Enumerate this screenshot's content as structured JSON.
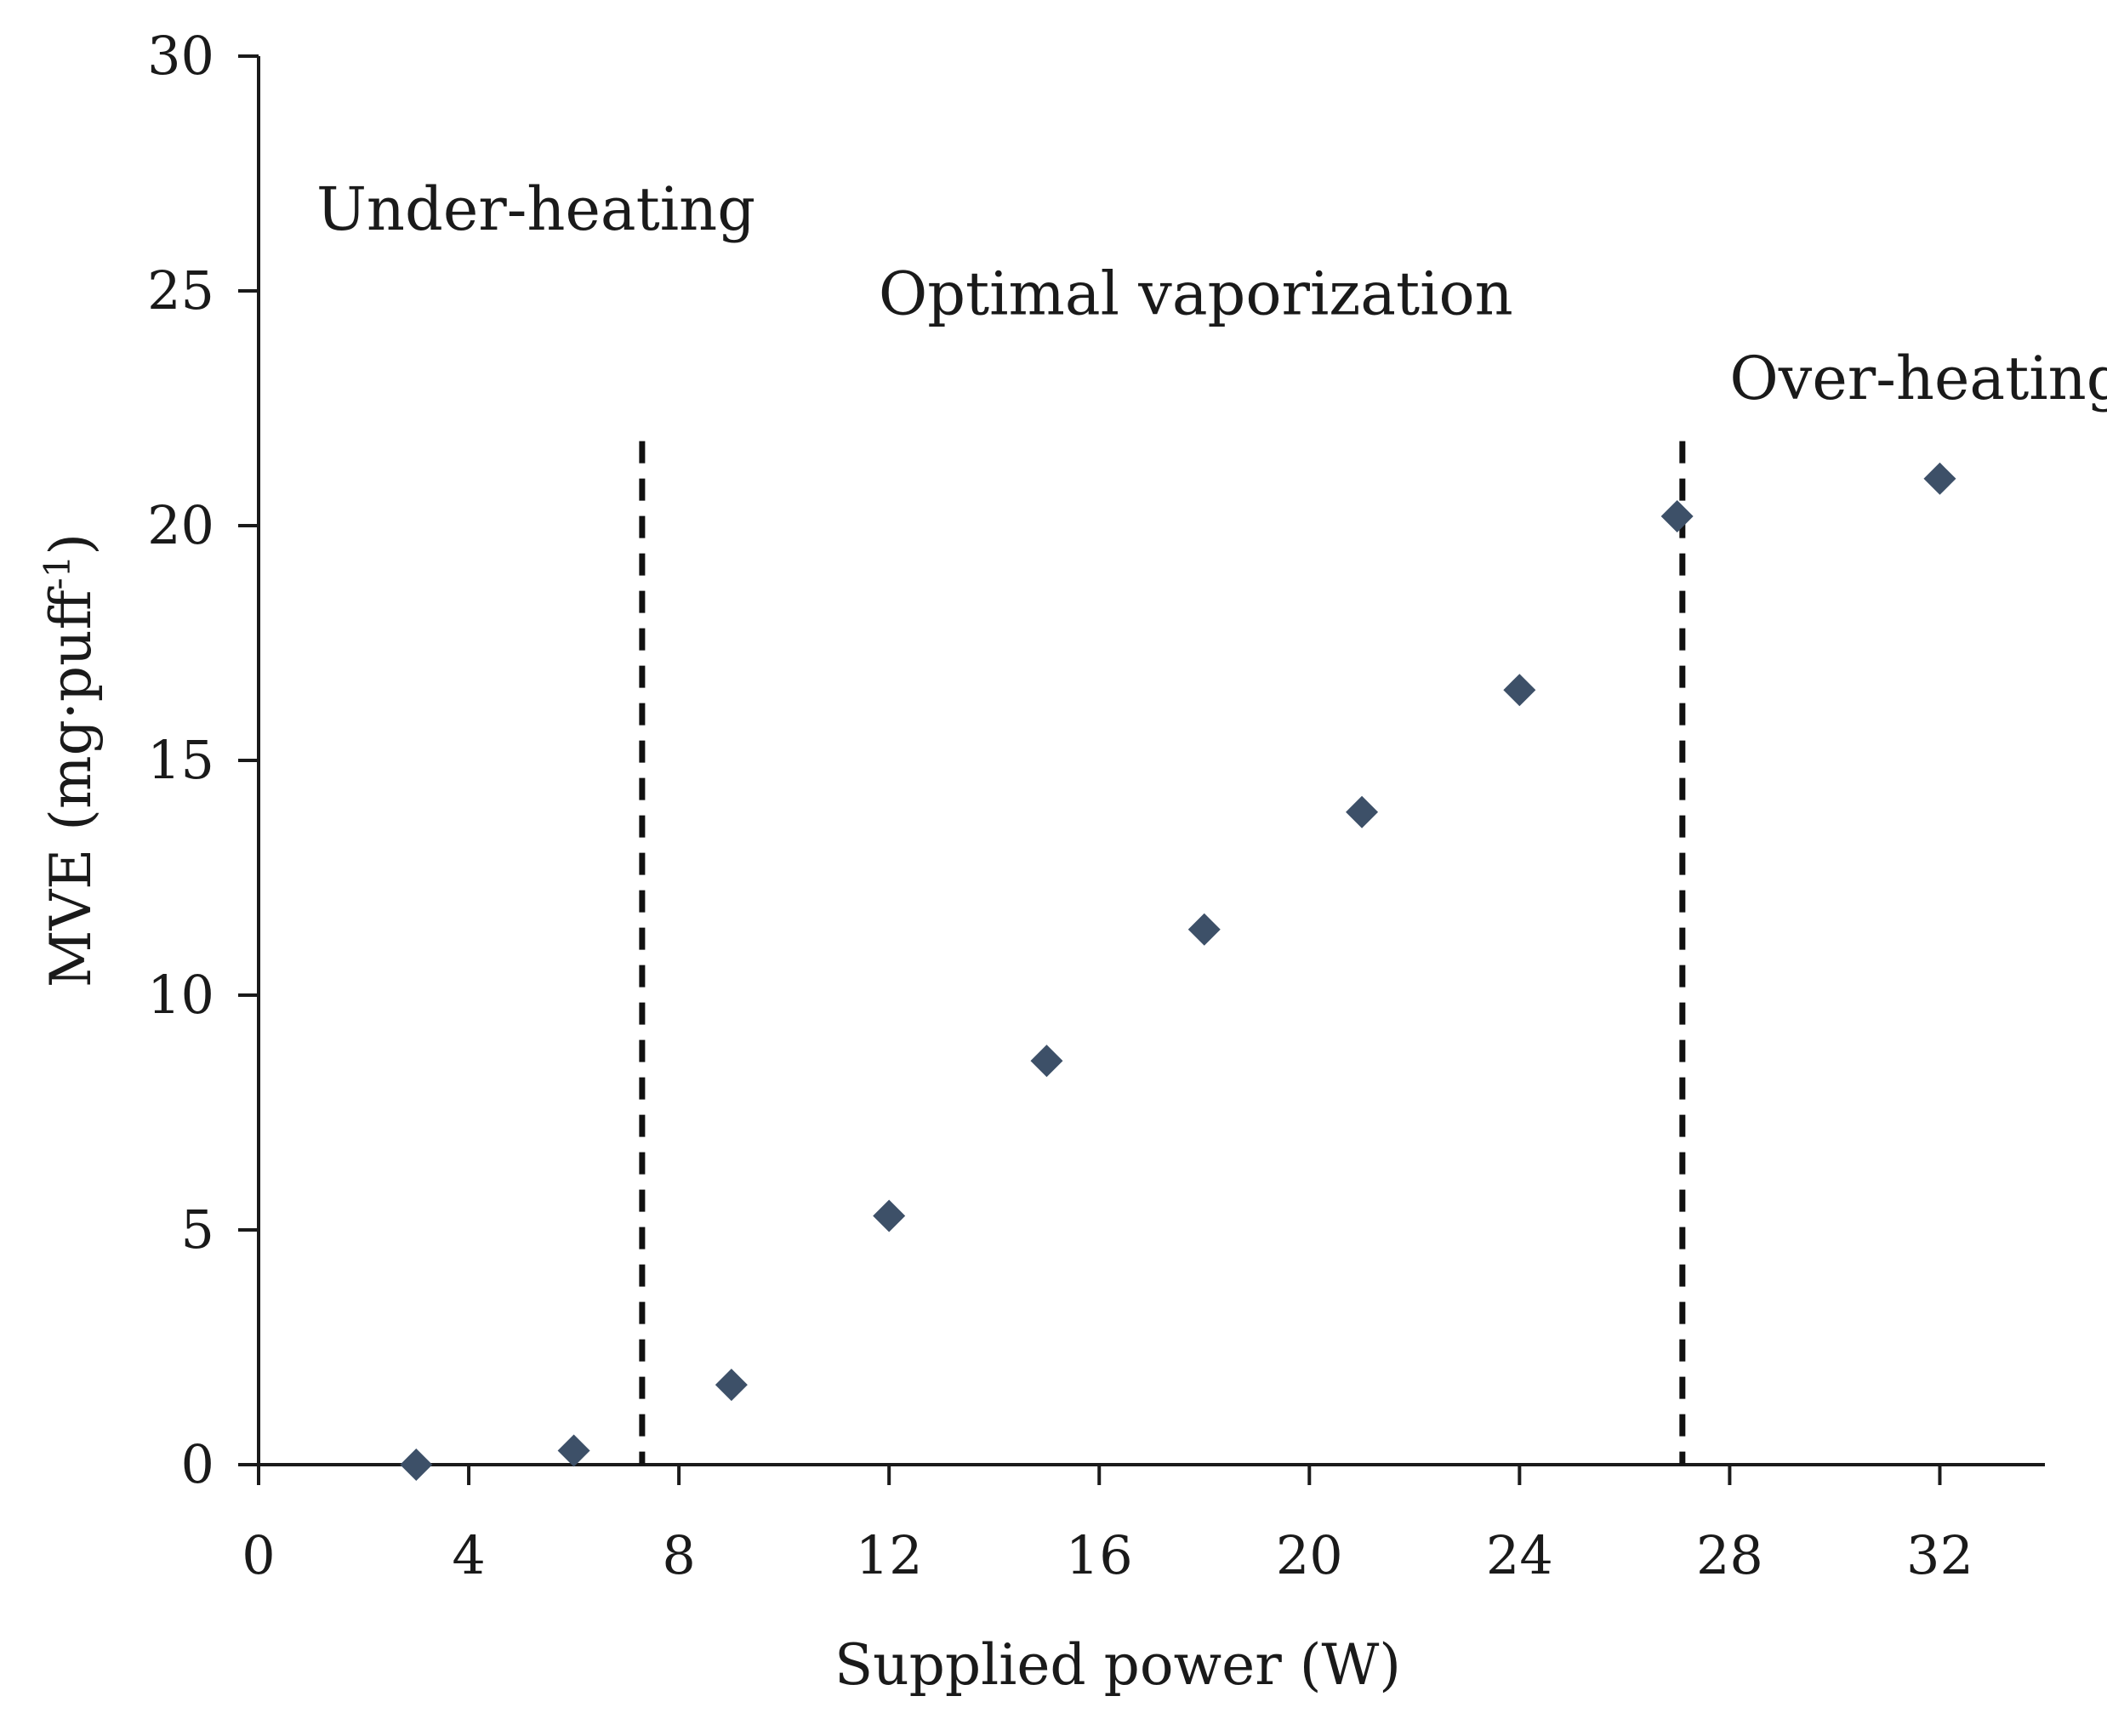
{
  "chart_data": {
    "type": "scatter",
    "title": "",
    "xlabel": "Supplied power (W)",
    "ylabel": "MVE (mg·puff",
    "ylabel_superscript": "-1",
    "ylabel_suffix": ")",
    "xlim": [
      0,
      34
    ],
    "ylim": [
      0,
      30
    ],
    "xticks": [
      0,
      4,
      8,
      12,
      16,
      20,
      24,
      28,
      32
    ],
    "yticks": [
      0,
      5,
      10,
      15,
      20,
      25,
      30
    ],
    "grid": false,
    "series": [
      {
        "name": "MVE",
        "marker": "diamond",
        "color": "#3d5068",
        "x": [
          3,
          6,
          9,
          12,
          15,
          18,
          21,
          24,
          27,
          32
        ],
        "y": [
          0.0,
          0.3,
          1.7,
          5.3,
          8.6,
          11.4,
          13.9,
          16.5,
          20.2,
          21.0
        ]
      }
    ],
    "thresholds": [
      {
        "x": 7.3,
        "ymax": 21.8,
        "style": "dashed"
      },
      {
        "x": 27.1,
        "ymax": 21.8,
        "style": "dashed"
      }
    ],
    "annotations": [
      {
        "text": "Under-heating",
        "x": 1.1,
        "y": 26.3
      },
      {
        "text": "Optimal vaporization",
        "x": 11.8,
        "y": 24.5
      },
      {
        "text": "Over-heating",
        "x": 28.0,
        "y": 22.7
      }
    ]
  },
  "colors": {
    "axis": "#1a1a1a",
    "marker": "#3d5068",
    "threshold": "#111111"
  }
}
